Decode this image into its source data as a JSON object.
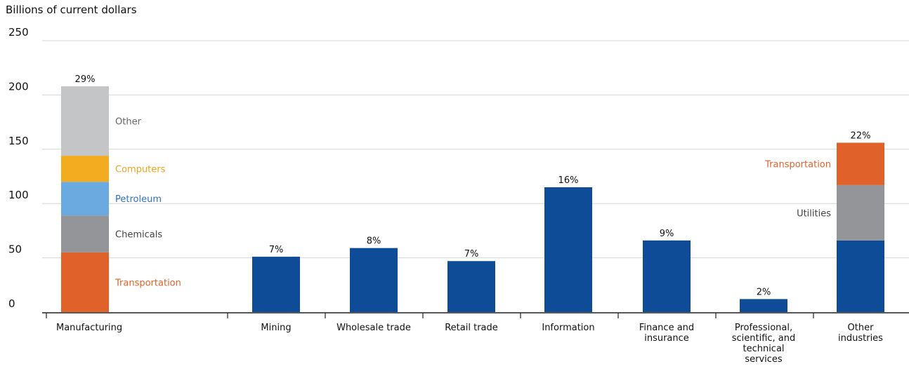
{
  "chart_data": {
    "type": "bar",
    "unit_label": "Billions of current dollars",
    "ylim": [
      0,
      250
    ],
    "yticks": [
      "0",
      "50",
      "100",
      "150",
      "200",
      "250"
    ],
    "grid": true,
    "categories": [
      [
        "Manufacturing"
      ],
      [
        "Mining"
      ],
      [
        "Wholesale trade"
      ],
      [
        "Retail trade"
      ],
      [
        "Information"
      ],
      [
        "Finance and",
        "insurance"
      ],
      [
        "Professional,",
        "scientific, and",
        "technical",
        "services"
      ],
      [
        "Other",
        "industries"
      ]
    ],
    "bars": [
      {
        "category": "Manufacturing",
        "pct_label": "29%",
        "segments": [
          {
            "name": "Transportation",
            "value": 55,
            "color": "#e0622a",
            "label_color": "#e0622a"
          },
          {
            "name": "Chemicals",
            "value": 34,
            "color": "#939598",
            "label_color": "#444444"
          },
          {
            "name": "Petroleum",
            "value": 31,
            "color": "#6aaae0",
            "label_color": "#2f72c4"
          },
          {
            "name": "Computers",
            "value": 24,
            "color": "#f3ac20",
            "label_color": "#f0a31c"
          },
          {
            "name": "Other",
            "value": 64,
            "color": "#c4c5c7",
            "label_color": "#666666"
          }
        ]
      },
      {
        "category": "Mining",
        "pct_label": "7%",
        "segments": [
          {
            "name": "",
            "value": 51,
            "color": "#0f4c97"
          }
        ]
      },
      {
        "category": "Wholesale trade",
        "pct_label": "8%",
        "segments": [
          {
            "name": "",
            "value": 59,
            "color": "#0f4c97"
          }
        ]
      },
      {
        "category": "Retail trade",
        "pct_label": "7%",
        "segments": [
          {
            "name": "",
            "value": 47,
            "color": "#0f4c97"
          }
        ]
      },
      {
        "category": "Information",
        "pct_label": "16%",
        "segments": [
          {
            "name": "",
            "value": 115,
            "color": "#0f4c97"
          }
        ]
      },
      {
        "category": "Finance and insurance",
        "pct_label": "9%",
        "segments": [
          {
            "name": "",
            "value": 66,
            "color": "#0f4c97"
          }
        ]
      },
      {
        "category": "Professional, scientific, and technical services",
        "pct_label": "2%",
        "segments": [
          {
            "name": "",
            "value": 12,
            "color": "#0f4c97"
          }
        ]
      },
      {
        "category": "Other industries",
        "pct_label": "22%",
        "segments": [
          {
            "name": "",
            "value": 66,
            "color": "#0f4c97"
          },
          {
            "name": "Utilities",
            "value": 51,
            "color": "#939598",
            "label_color": "#444444"
          },
          {
            "name": "Transportation",
            "value": 39,
            "color": "#e0622a",
            "label_color": "#e0622a"
          }
        ]
      }
    ]
  }
}
